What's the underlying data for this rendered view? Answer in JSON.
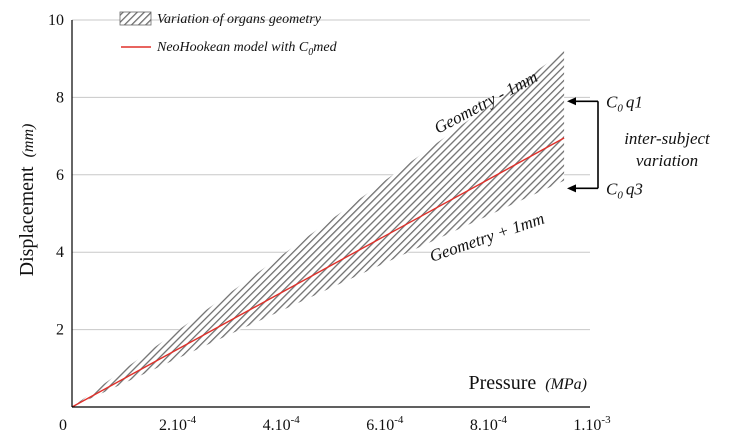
{
  "chart_data": {
    "type": "area",
    "xlabel": "Pressure",
    "xunit": "(MPa)",
    "ylabel": "Displacement",
    "yunit": "(mm)",
    "xlim": [
      0,
      0.001
    ],
    "ylim": [
      0,
      10
    ],
    "x_ticks": [
      {
        "value": 0,
        "base": "0",
        "exp": ""
      },
      {
        "value": 0.0002,
        "base": "2.10",
        "exp": "-4"
      },
      {
        "value": 0.0004,
        "base": "4.10",
        "exp": "-4"
      },
      {
        "value": 0.0006,
        "base": "6.10",
        "exp": "-4"
      },
      {
        "value": 0.0008,
        "base": "8.10",
        "exp": "-4"
      },
      {
        "value": 0.001,
        "base": "1.10",
        "exp": "-3"
      }
    ],
    "y_ticks": [
      {
        "value": 2,
        "label": "2"
      },
      {
        "value": 4,
        "label": "4"
      },
      {
        "value": 6,
        "label": "6"
      },
      {
        "value": 8,
        "label": "8"
      },
      {
        "value": 10,
        "label": "10"
      }
    ],
    "grid": "horizontal",
    "band": {
      "name": "Variation of organs geometry",
      "x": [
        0,
        0.00095
      ],
      "upper": [
        0,
        9.2
      ],
      "lower": [
        0,
        5.85
      ],
      "fill": "#9a9a9a"
    },
    "line": {
      "name_prefix": "NeoHookean model with ",
      "name_sym": "C",
      "name_sub": "0",
      "name_suffix": "med",
      "x": [
        0,
        0.00095
      ],
      "y": [
        0,
        6.95
      ],
      "color": "#e0302a"
    },
    "legend_position": "top-left",
    "annotations": {
      "upper_edge": "Geometry - 1mm",
      "lower_edge": "Geometry + 1mm",
      "q1_sym": "C",
      "q1_sub": "0",
      "q1_suffix": "q1",
      "q3_sym": "C",
      "q3_sub": "0",
      "q3_suffix": "q3",
      "variation_line1": "inter-subject",
      "variation_line2": "variation",
      "q1_y": 7.9,
      "q3_y": 5.65
    }
  }
}
